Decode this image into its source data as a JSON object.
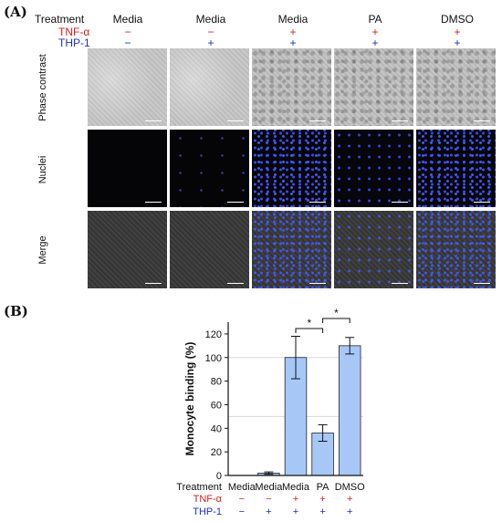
{
  "panel_a_label": "(A)",
  "panel_b_label": "(B)",
  "panel_a": {
    "treatment_label": "Treatment",
    "tnf_label": "TNF-α",
    "thp_label": "THP-1",
    "columns": [
      {
        "treatment": "Media",
        "tnf": "−",
        "thp": "−"
      },
      {
        "treatment": "Media",
        "tnf": "−",
        "thp": "+"
      },
      {
        "treatment": "Media",
        "tnf": "+",
        "thp": "+"
      },
      {
        "treatment": "PA",
        "tnf": "+",
        "thp": "+"
      },
      {
        "treatment": "DMSO",
        "tnf": "+",
        "thp": "+"
      }
    ],
    "rows": [
      "Phase contrast",
      "Nuclei",
      "Merge"
    ]
  },
  "chart_data": {
    "type": "bar",
    "categories": [
      "Media",
      "Media",
      "Media",
      "PA",
      "DMSO"
    ],
    "values": [
      0,
      2,
      100,
      36,
      110
    ],
    "errors": [
      0,
      1,
      18,
      7,
      7
    ],
    "ylabel": "Monocyte binding (%)",
    "xlabel": "",
    "ylim": [
      0,
      130
    ],
    "yticks": [
      "0",
      "20",
      "40",
      "60",
      "80",
      "100",
      "120"
    ],
    "reference_lines": [
      50,
      100
    ],
    "grid": false,
    "treatment_label": "Treatment",
    "tnf_label": "TNF-α",
    "thp_label": "THP-1",
    "tnf_signs": [
      "−",
      "−",
      "+",
      "+",
      "+"
    ],
    "thp_signs": [
      "−",
      "+",
      "+",
      "+",
      "+"
    ],
    "significance": [
      {
        "from": 2,
        "to": 3,
        "label": "*"
      },
      {
        "from": 3,
        "to": 4,
        "label": "*"
      }
    ],
    "colors": {
      "bar_fill": "#a7c8f7",
      "bar_stroke": "#222222",
      "red": "#e01b1b",
      "blue": "#1f2bd6"
    }
  }
}
